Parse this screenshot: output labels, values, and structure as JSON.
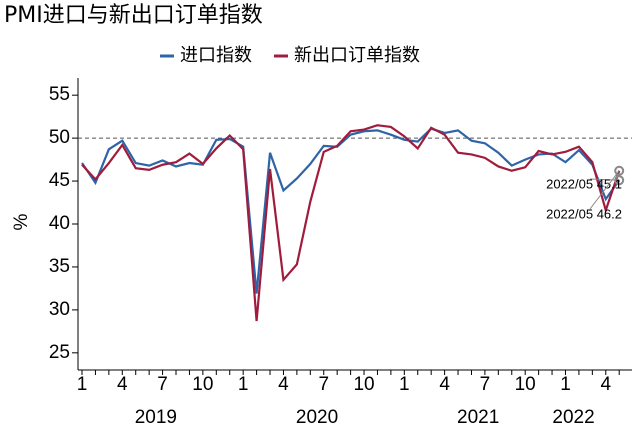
{
  "chart_data": {
    "type": "line",
    "title": "PMI进口与新出口订单指数",
    "ylabel": "%",
    "categories": [
      "1",
      null,
      null,
      "4",
      null,
      null,
      "7",
      null,
      null,
      "10",
      null,
      null,
      "1",
      null,
      null,
      "4",
      null,
      null,
      "7",
      null,
      null,
      "10",
      null,
      null,
      "1",
      null,
      null,
      "4",
      null,
      null,
      "7",
      null,
      null,
      "10",
      null,
      null,
      "1",
      null,
      null,
      "4",
      null
    ],
    "years": [
      "2019",
      "2020",
      "2021",
      "2022"
    ],
    "series": [
      {
        "name": "进口指数",
        "color": "#2e64a8",
        "values": [
          47.1,
          44.8,
          48.7,
          49.7,
          47.1,
          46.8,
          47.4,
          46.7,
          47.1,
          46.9,
          49.8,
          49.9,
          49.0,
          31.9,
          48.3,
          43.9,
          45.3,
          47.0,
          49.1,
          49.0,
          50.4,
          50.8,
          50.9,
          50.4,
          49.8,
          49.6,
          51.1,
          50.6,
          50.9,
          49.7,
          49.4,
          48.3,
          46.8,
          47.5,
          48.1,
          48.2,
          47.2,
          48.6,
          46.9,
          42.9,
          45.1
        ]
      },
      {
        "name": "新出口订单指数",
        "color": "#a01c3c",
        "values": [
          46.9,
          45.2,
          47.1,
          49.2,
          46.5,
          46.3,
          46.9,
          47.2,
          48.2,
          47.0,
          48.8,
          50.3,
          48.7,
          28.7,
          46.4,
          33.5,
          35.3,
          42.6,
          48.4,
          49.1,
          50.8,
          51.0,
          51.5,
          51.3,
          50.2,
          48.8,
          51.2,
          50.4,
          48.3,
          48.1,
          47.7,
          46.7,
          46.2,
          46.6,
          48.5,
          48.1,
          48.4,
          49.0,
          47.2,
          41.6,
          46.2
        ]
      }
    ],
    "ylim": [
      23,
      57
    ],
    "yticks": [
      25,
      30,
      35,
      40,
      45,
      50,
      55
    ],
    "ref_line": 50,
    "annotations": [
      "2022/05 45.1",
      "2022/05 46.2"
    ]
  }
}
